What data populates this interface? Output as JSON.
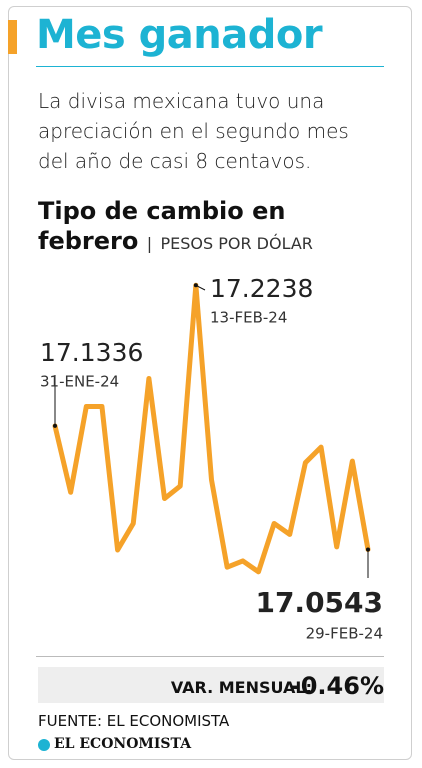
{
  "header": {
    "title": "Mes ganador",
    "description": "La divisa mexicana tuvo una apreciación en el segundo mes del año de casi 8 centavos."
  },
  "chart_data": {
    "type": "line",
    "title": "Tipo de cambio en febrero",
    "unit": "PESOS POR DÓLAR",
    "categories": [
      "31-ENE-24",
      null,
      null,
      null,
      null,
      null,
      null,
      null,
      null,
      "13-FEB-24",
      null,
      null,
      null,
      null,
      null,
      null,
      null,
      null,
      null,
      null,
      "29-FEB-24"
    ],
    "values": [
      17.1336,
      17.091,
      17.146,
      17.146,
      17.054,
      17.071,
      17.164,
      17.087,
      17.095,
      17.2238,
      17.099,
      17.043,
      17.047,
      17.04,
      17.071,
      17.064,
      17.11,
      17.12,
      17.056,
      17.111,
      17.0543
    ],
    "color": "#f5a229",
    "ylim": [
      17.02,
      17.24
    ]
  },
  "summary": {
    "label": "VAR. MENSUAL:",
    "value": "-0.46%"
  },
  "footer": {
    "source": "FUENTE: EL ECONOMISTA",
    "logo": "EL ECONOMISTA"
  }
}
